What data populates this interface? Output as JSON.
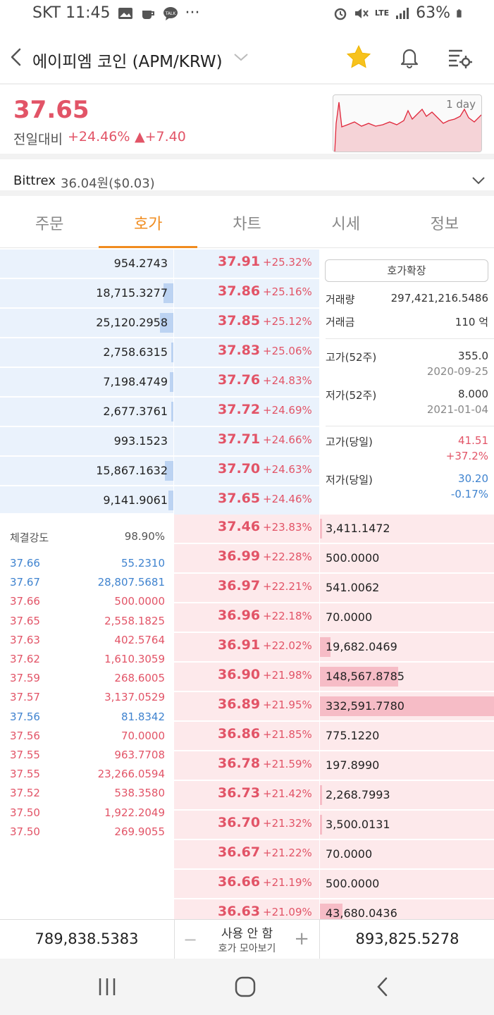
{
  "status_bar": {
    "carrier_time": "SKT 11:45",
    "extra": "···",
    "battery": "63%",
    "network": "LTE",
    "icons": [
      "image-icon",
      "coffee-icon",
      "talk-icon",
      "alarm-icon",
      "mute-icon",
      "signal-icon",
      "battery-icon"
    ]
  },
  "header": {
    "title": "에이피엠 코인 (APM/KRW)",
    "icons": [
      "back-arrow-icon",
      "chevron-down-icon",
      "star-icon",
      "bell-icon",
      "settings-list-icon"
    ]
  },
  "price": {
    "current": "37.65",
    "prev_label": "전일대비",
    "change_pct": "+24.46%",
    "change_abs": "▲+7.40",
    "chart_label": "1 day",
    "colors": {
      "up": "#e25467",
      "down": "#3f83cf",
      "accent": "#f08c1f"
    }
  },
  "exchange": {
    "name": "Bittrex",
    "value": "36.04원($0.03)"
  },
  "tabs": [
    {
      "label": "주문",
      "active": false
    },
    {
      "label": "호가",
      "active": true
    },
    {
      "label": "차트",
      "active": false
    },
    {
      "label": "시세",
      "active": false
    },
    {
      "label": "정보",
      "active": false
    }
  ],
  "asks": [
    {
      "qty": "954.2743",
      "price": "37.91",
      "pct": "+25.32%",
      "depth": 0.0
    },
    {
      "qty": "18,715.3277",
      "price": "37.86",
      "pct": "+25.16%",
      "depth": 0.06
    },
    {
      "qty": "25,120.2958",
      "price": "37.85",
      "pct": "+25.12%",
      "depth": 0.08
    },
    {
      "qty": "2,758.6315",
      "price": "37.83",
      "pct": "+25.06%",
      "depth": 0.01
    },
    {
      "qty": "7,198.4749",
      "price": "37.76",
      "pct": "+24.83%",
      "depth": 0.02
    },
    {
      "qty": "2,677.3761",
      "price": "37.72",
      "pct": "+24.69%",
      "depth": 0.01
    },
    {
      "qty": "993.1523",
      "price": "37.71",
      "pct": "+24.66%",
      "depth": 0.0
    },
    {
      "qty": "15,867.1632",
      "price": "37.70",
      "pct": "+24.63%",
      "depth": 0.05
    },
    {
      "qty": "9,141.9061",
      "price": "37.65",
      "pct": "+24.46%",
      "depth": 0.03
    }
  ],
  "bids": [
    {
      "price": "37.46",
      "pct": "+23.83%",
      "qty": "3,411.1472",
      "depth": 0.01
    },
    {
      "price": "36.99",
      "pct": "+22.28%",
      "qty": "500.0000",
      "depth": 0.0
    },
    {
      "price": "36.97",
      "pct": "+22.21%",
      "qty": "541.0062",
      "depth": 0.0
    },
    {
      "price": "36.96",
      "pct": "+22.18%",
      "qty": "70.0000",
      "depth": 0.0
    },
    {
      "price": "36.91",
      "pct": "+22.02%",
      "qty": "19,682.0469",
      "depth": 0.06
    },
    {
      "price": "36.90",
      "pct": "+21.98%",
      "qty": "148,567.8785",
      "depth": 0.45
    },
    {
      "price": "36.89",
      "pct": "+21.95%",
      "qty": "332,591.7780",
      "depth": 1.0
    },
    {
      "price": "36.86",
      "pct": "+21.85%",
      "qty": "775.1220",
      "depth": 0.0
    },
    {
      "price": "36.78",
      "pct": "+21.59%",
      "qty": "197.8990",
      "depth": 0.0
    },
    {
      "price": "36.73",
      "pct": "+21.42%",
      "qty": "2,268.7993",
      "depth": 0.01
    },
    {
      "price": "36.70",
      "pct": "+21.32%",
      "qty": "3,500.0131",
      "depth": 0.01
    },
    {
      "price": "36.67",
      "pct": "+21.22%",
      "qty": "70.0000",
      "depth": 0.0
    },
    {
      "price": "36.66",
      "pct": "+21.19%",
      "qty": "500.0000",
      "depth": 0.0
    },
    {
      "price": "36.63",
      "pct": "+21.09%",
      "qty": "43,680.0436",
      "depth": 0.13
    }
  ],
  "info": {
    "expand_button": "호가확장",
    "volume_label": "거래량",
    "volume": "297,421,216.5486",
    "amount_label": "거래금",
    "amount": "110 억",
    "high52_label": "고가(52주)",
    "high52": "355.0",
    "high52_date": "2020-09-25",
    "low52_label": "저가(52주)",
    "low52": "8.000",
    "low52_date": "2021-01-04",
    "high_day_label": "고가(당일)",
    "high_day": "41.51",
    "high_day_pct": "+37.2%",
    "low_day_label": "저가(당일)",
    "low_day": "30.20",
    "low_day_pct": "-0.17%"
  },
  "trades": {
    "strength_label": "체결강도",
    "strength": "98.90%",
    "rows": [
      {
        "price": "37.66",
        "qty": "55.2310",
        "side": "down"
      },
      {
        "price": "37.67",
        "qty": "28,807.5681",
        "side": "down"
      },
      {
        "price": "37.66",
        "qty": "500.0000",
        "side": "up"
      },
      {
        "price": "37.65",
        "qty": "2,558.1825",
        "side": "up"
      },
      {
        "price": "37.63",
        "qty": "402.5764",
        "side": "up"
      },
      {
        "price": "37.62",
        "qty": "1,610.3059",
        "side": "up"
      },
      {
        "price": "37.59",
        "qty": "268.6005",
        "side": "up"
      },
      {
        "price": "37.57",
        "qty": "3,137.0529",
        "side": "up"
      },
      {
        "price": "37.56",
        "qty": "81.8342",
        "side": "down"
      },
      {
        "price": "37.56",
        "qty": "70.0000",
        "side": "up"
      },
      {
        "price": "37.55",
        "qty": "963.7708",
        "side": "up"
      },
      {
        "price": "37.55",
        "qty": "23,266.0594",
        "side": "up"
      },
      {
        "price": "37.52",
        "qty": "538.3580",
        "side": "up"
      },
      {
        "price": "37.50",
        "qty": "1,922.2049",
        "side": "up"
      },
      {
        "price": "37.50",
        "qty": "269.9055",
        "side": "up"
      }
    ]
  },
  "footer": {
    "ask_total": "789,838.5383",
    "bid_total": "893,825.5278",
    "group_status": "사용 안 함",
    "group_label": "호가 모아보기",
    "minus": "−",
    "plus": "+"
  },
  "navbar": {
    "icons": [
      "recent-apps-icon",
      "home-icon",
      "nav-back-icon"
    ]
  }
}
